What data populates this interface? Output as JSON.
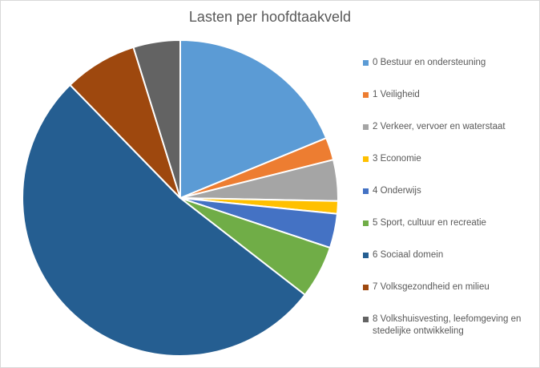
{
  "chart_data": {
    "type": "pie",
    "title": "Lasten per hoofdtaakveld",
    "legend_position": "right",
    "slices": [
      {
        "label": "0 Bestuur en ondersteuning",
        "value": 18.8,
        "color": "#5b9bd5"
      },
      {
        "label": "1 Veiligheid",
        "value": 2.3,
        "color": "#ed7d31"
      },
      {
        "label": "2 Verkeer, vervoer en waterstaat",
        "value": 4.2,
        "color": "#a5a5a5"
      },
      {
        "label": "3 Economie",
        "value": 1.3,
        "color": "#ffc000"
      },
      {
        "label": "4 Onderwijs",
        "value": 3.5,
        "color": "#4472c4"
      },
      {
        "label": "5 Sport, cultuur en recreatie",
        "value": 5.4,
        "color": "#70ad47"
      },
      {
        "label": "6 Sociaal domein",
        "value": 52.2,
        "color": "#255e91"
      },
      {
        "label": "7 Volksgezondheid en milieu",
        "value": 7.5,
        "color": "#9e480e"
      },
      {
        "label": "8 Volkshuisvesting, leefomgeving en stedelijke ontwikkeling",
        "value": 4.8,
        "color": "#636363"
      }
    ]
  }
}
